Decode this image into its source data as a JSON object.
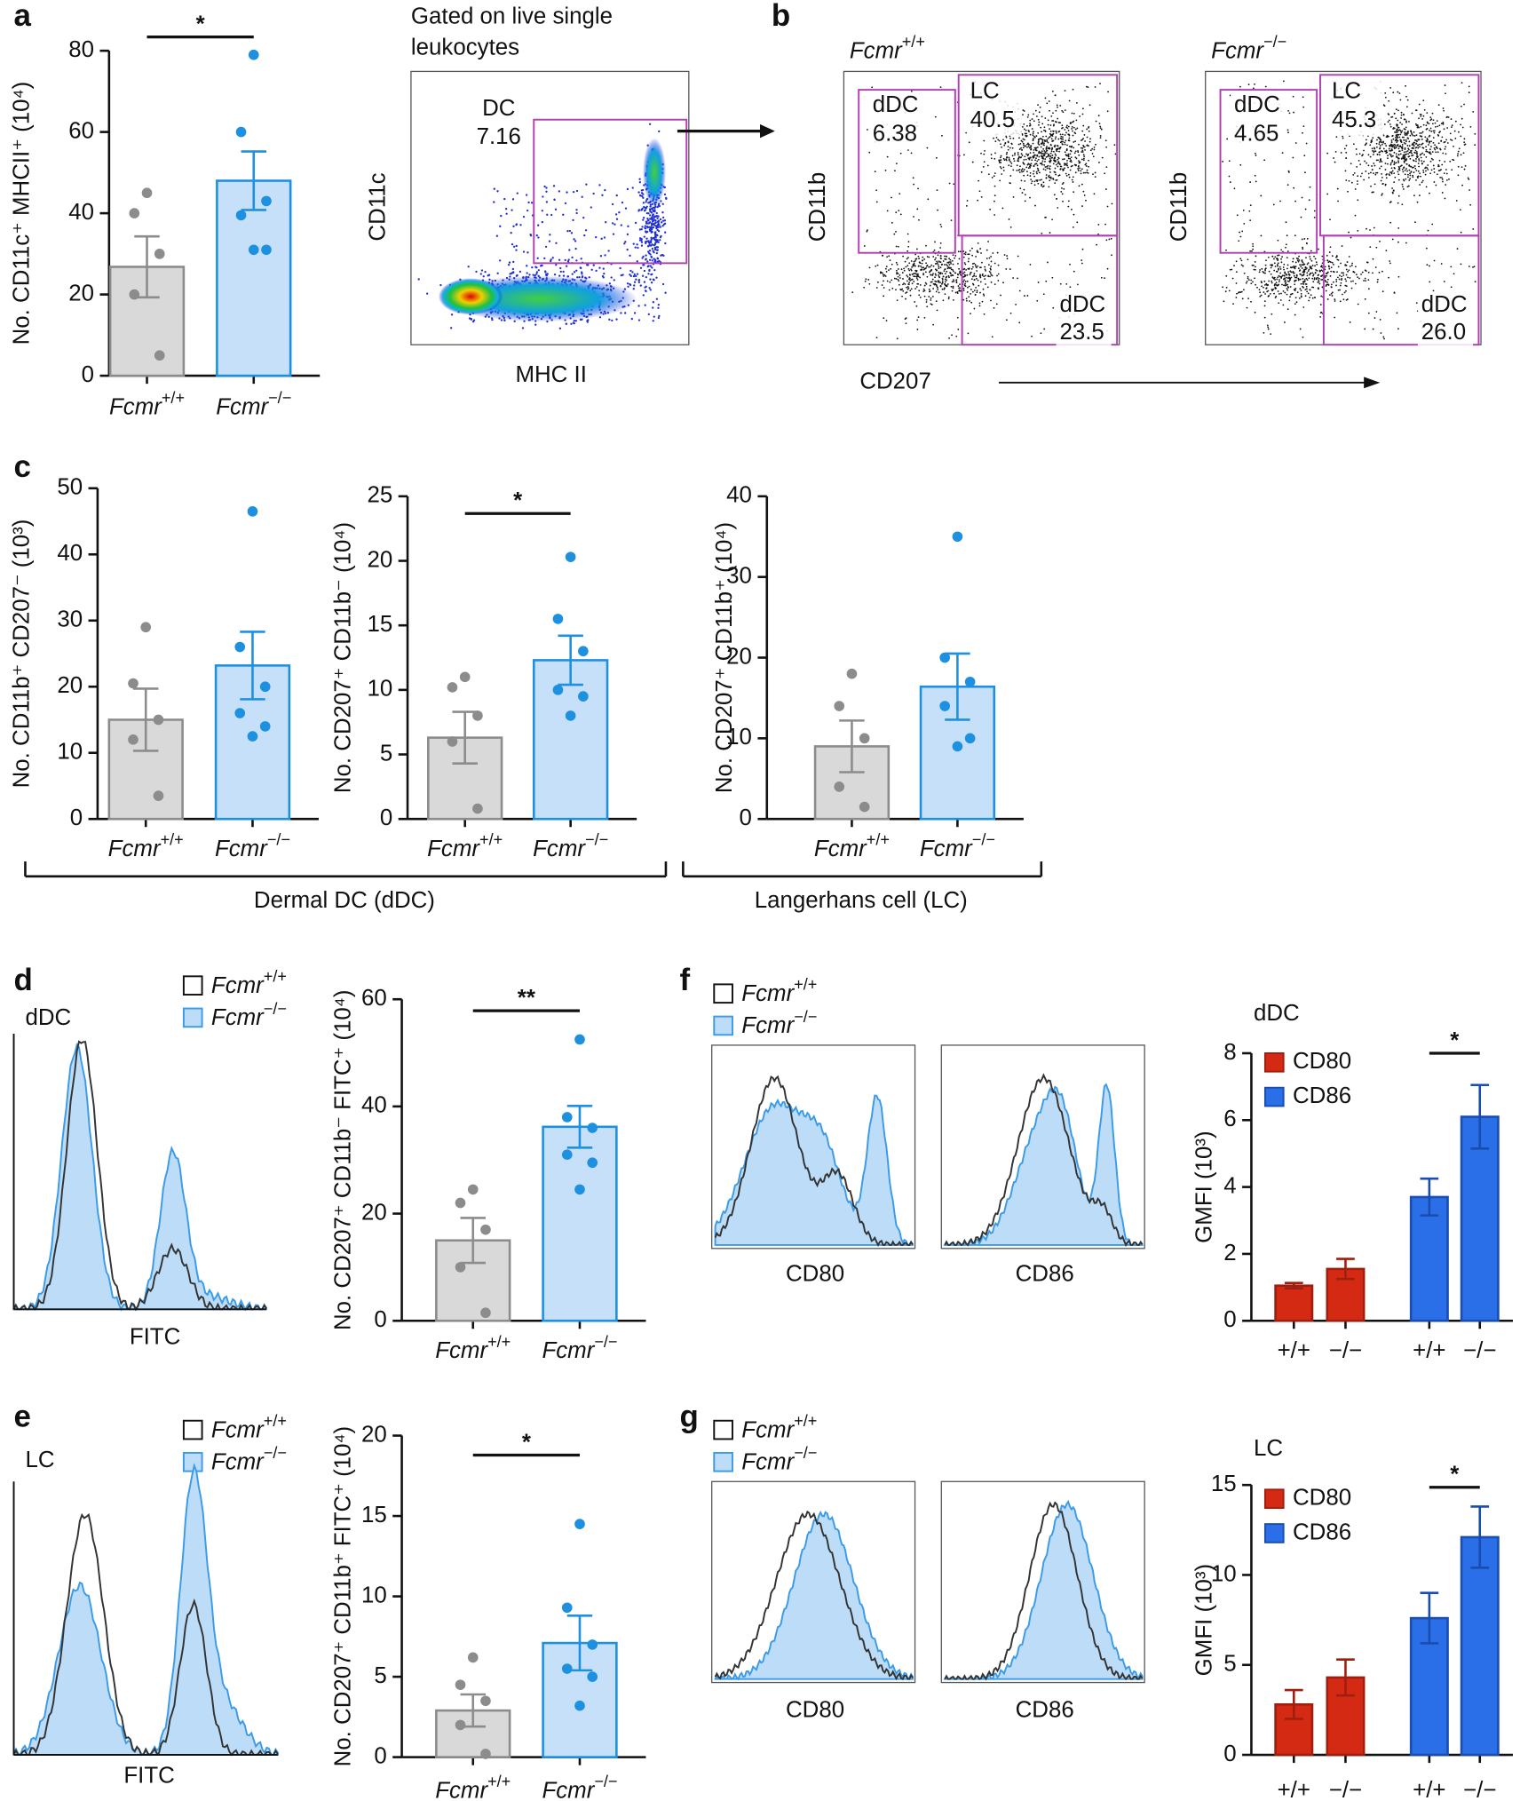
{
  "panel_labels": [
    "a",
    "b",
    "c",
    "d",
    "e",
    "f",
    "g"
  ],
  "gating": {
    "note": [
      "Gated on live single",
      "leukocytes"
    ],
    "gate": "DC",
    "gate_value": "7.16",
    "x_label": "MHC II",
    "y_label": "CD11c"
  },
  "gated_plots": [
    {
      "title": "Fcmr+/+",
      "y_label": "CD11b",
      "gates": [
        {
          "name": "dDC",
          "value": "6.38"
        },
        {
          "name": "LC",
          "value": "40.5"
        },
        {
          "name": "dDC",
          "value": "23.5"
        }
      ]
    },
    {
      "title": "Fcmr−/−",
      "y_label": "CD11b",
      "gates": [
        {
          "name": "dDC",
          "value": "4.65"
        },
        {
          "name": "LC",
          "value": "45.3"
        },
        {
          "name": "dDC",
          "value": "26.0"
        }
      ]
    }
  ],
  "gated_x_label": "CD207",
  "groups": [
    "Dermal DC (dDC)",
    "Langerhans cell (LC)"
  ],
  "histograms": [
    {
      "title": "dDC",
      "legend": [
        "Fcmr+/+",
        "Fcmr−/−"
      ],
      "x_labels": [
        "FITC"
      ]
    },
    {
      "title": "LC",
      "legend": [
        "Fcmr+/+",
        "Fcmr−/−"
      ],
      "x_labels": [
        "FITC"
      ]
    },
    {
      "legend": [
        "Fcmr+/+",
        "Fcmr−/−"
      ],
      "x_labels": [
        "CD80",
        "CD86"
      ]
    },
    {
      "legend": [
        "Fcmr+/+",
        "Fcmr−/−"
      ],
      "x_labels": [
        "CD80",
        "CD86"
      ]
    }
  ],
  "chart_data": [
    {
      "type": "bar",
      "y_label": "No. CD11c⁺ MHCII⁺ (10⁴)",
      "categories": [
        "Fcmr+/+",
        "Fcmr−/−"
      ],
      "values": [
        26.8,
        48.0
      ],
      "errors": [
        7.5,
        7.2
      ],
      "points": [
        [
          45,
          40,
          30,
          20,
          5
        ],
        [
          79,
          60,
          43,
          39.5,
          31,
          31
        ]
      ],
      "colors": [
        "#d9d9d9",
        "#c6e0fa"
      ],
      "edge_colors": [
        "#8c8c8c",
        "#1e90e0"
      ],
      "point_colors": [
        "#8c8c8c",
        "#1e90e0"
      ],
      "ylim": [
        0,
        80
      ],
      "yticks": [
        0,
        20,
        40,
        60,
        80
      ],
      "significance": "*"
    },
    {
      "type": "bar",
      "y_label": "No. CD11b⁺ CD207⁻ (10³)",
      "categories": [
        "Fcmr+/+",
        "Fcmr−/−"
      ],
      "values": [
        15,
        23.2
      ],
      "errors": [
        4.7,
        5.1
      ],
      "points": [
        [
          29,
          20.5,
          15,
          12,
          3.5
        ],
        [
          46.5,
          26,
          20,
          16,
          14,
          12.5
        ]
      ],
      "colors": [
        "#d9d9d9",
        "#c6e0fa"
      ],
      "edge_colors": [
        "#8c8c8c",
        "#1e90e0"
      ],
      "point_colors": [
        "#8c8c8c",
        "#1e90e0"
      ],
      "ylim": [
        0,
        50
      ],
      "yticks": [
        0,
        10,
        20,
        30,
        40,
        50
      ]
    },
    {
      "type": "bar",
      "y_label": "No. CD207⁺ CD11b⁻ (10⁴)",
      "categories": [
        "Fcmr+/+",
        "Fcmr−/−"
      ],
      "values": [
        6.3,
        12.3
      ],
      "errors": [
        2,
        1.9
      ],
      "points": [
        [
          11,
          10.2,
          8,
          6,
          0.8
        ],
        [
          20.3,
          15.5,
          13,
          10,
          9.5,
          8
        ]
      ],
      "colors": [
        "#d9d9d9",
        "#c6e0fa"
      ],
      "edge_colors": [
        "#8c8c8c",
        "#1e90e0"
      ],
      "point_colors": [
        "#8c8c8c",
        "#1e90e0"
      ],
      "ylim": [
        0,
        25
      ],
      "yticks": [
        0,
        5,
        10,
        15,
        20,
        25
      ],
      "significance": "*"
    },
    {
      "type": "bar",
      "y_label": "No. CD207⁺ CD11b⁺ (10⁴)",
      "categories": [
        "Fcmr+/+",
        "Fcmr−/−"
      ],
      "values": [
        9,
        16.4
      ],
      "errors": [
        3.2,
        4.1
      ],
      "points": [
        [
          18,
          14,
          10,
          4,
          1.5
        ],
        [
          35,
          20,
          17,
          14,
          10,
          9
        ]
      ],
      "colors": [
        "#d9d9d9",
        "#c6e0fa"
      ],
      "edge_colors": [
        "#8c8c8c",
        "#1e90e0"
      ],
      "point_colors": [
        "#8c8c8c",
        "#1e90e0"
      ],
      "ylim": [
        0,
        40
      ],
      "yticks": [
        0,
        10,
        20,
        30,
        40
      ]
    },
    {
      "type": "bar",
      "y_label": "No. CD207⁺ CD11b⁻ FITC⁺ (10⁴)",
      "categories": [
        "Fcmr+/+",
        "Fcmr−/−"
      ],
      "values": [
        15,
        36.2
      ],
      "errors": [
        4.2,
        3.9
      ],
      "points": [
        [
          24.5,
          22,
          17,
          10,
          1.5
        ],
        [
          52.5,
          38,
          36,
          31,
          29.5,
          24.5
        ]
      ],
      "colors": [
        "#d9d9d9",
        "#c6e0fa"
      ],
      "edge_colors": [
        "#8c8c8c",
        "#1e90e0"
      ],
      "point_colors": [
        "#8c8c8c",
        "#1e90e0"
      ],
      "ylim": [
        0,
        60
      ],
      "yticks": [
        0,
        20,
        40,
        60
      ],
      "significance": "**"
    },
    {
      "type": "bar",
      "y_label": "No. CD207⁺ CD11b⁺ FITC⁺ (10⁴)",
      "categories": [
        "Fcmr+/+",
        "Fcmr−/−"
      ],
      "values": [
        2.9,
        7.1
      ],
      "errors": [
        1,
        1.7
      ],
      "points": [
        [
          6.2,
          4.5,
          3.5,
          2,
          0.2
        ],
        [
          14.5,
          9.3,
          7,
          5.5,
          5,
          3.2
        ]
      ],
      "colors": [
        "#d9d9d9",
        "#c6e0fa"
      ],
      "edge_colors": [
        "#8c8c8c",
        "#1e90e0"
      ],
      "point_colors": [
        "#8c8c8c",
        "#1e90e0"
      ],
      "ylim": [
        0,
        20
      ],
      "yticks": [
        0,
        5,
        10,
        15,
        20
      ],
      "significance": "*"
    },
    {
      "type": "grouped_bar",
      "title": "dDC",
      "y_label": "GMFI (10³)",
      "categories": [
        "+/+",
        "−/−",
        "+/+",
        "−/−"
      ],
      "series": [
        {
          "name": "CD80",
          "color": "#d42a14",
          "edge_color": "#a01e0e",
          "values": [
            1.05,
            1.55,
            null,
            null
          ],
          "errors": [
            0.08,
            0.3,
            null,
            null
          ]
        },
        {
          "name": "CD86",
          "color": "#2a6ee8",
          "edge_color": "#1a4db0",
          "values": [
            null,
            null,
            3.7,
            6.1
          ],
          "errors": [
            null,
            null,
            0.55,
            0.95
          ]
        }
      ],
      "ylim": [
        0,
        8
      ],
      "yticks": [
        0,
        2,
        4,
        6,
        8
      ],
      "significance": "*"
    },
    {
      "type": "grouped_bar",
      "title": "LC",
      "y_label": "GMFI (10³)",
      "categories": [
        "+/+",
        "−/−",
        "+/+",
        "−/−"
      ],
      "series": [
        {
          "name": "CD80",
          "color": "#d42a14",
          "edge_color": "#a01e0e",
          "values": [
            2.8,
            4.3,
            null,
            null
          ],
          "errors": [
            0.8,
            1,
            null,
            null
          ]
        },
        {
          "name": "CD86",
          "color": "#2a6ee8",
          "edge_color": "#1a4db0",
          "values": [
            null,
            null,
            7.6,
            12.1
          ],
          "errors": [
            null,
            null,
            1.4,
            1.7
          ]
        }
      ],
      "ylim": [
        0,
        15
      ],
      "yticks": [
        0,
        5,
        10,
        15
      ],
      "significance": "*"
    }
  ]
}
